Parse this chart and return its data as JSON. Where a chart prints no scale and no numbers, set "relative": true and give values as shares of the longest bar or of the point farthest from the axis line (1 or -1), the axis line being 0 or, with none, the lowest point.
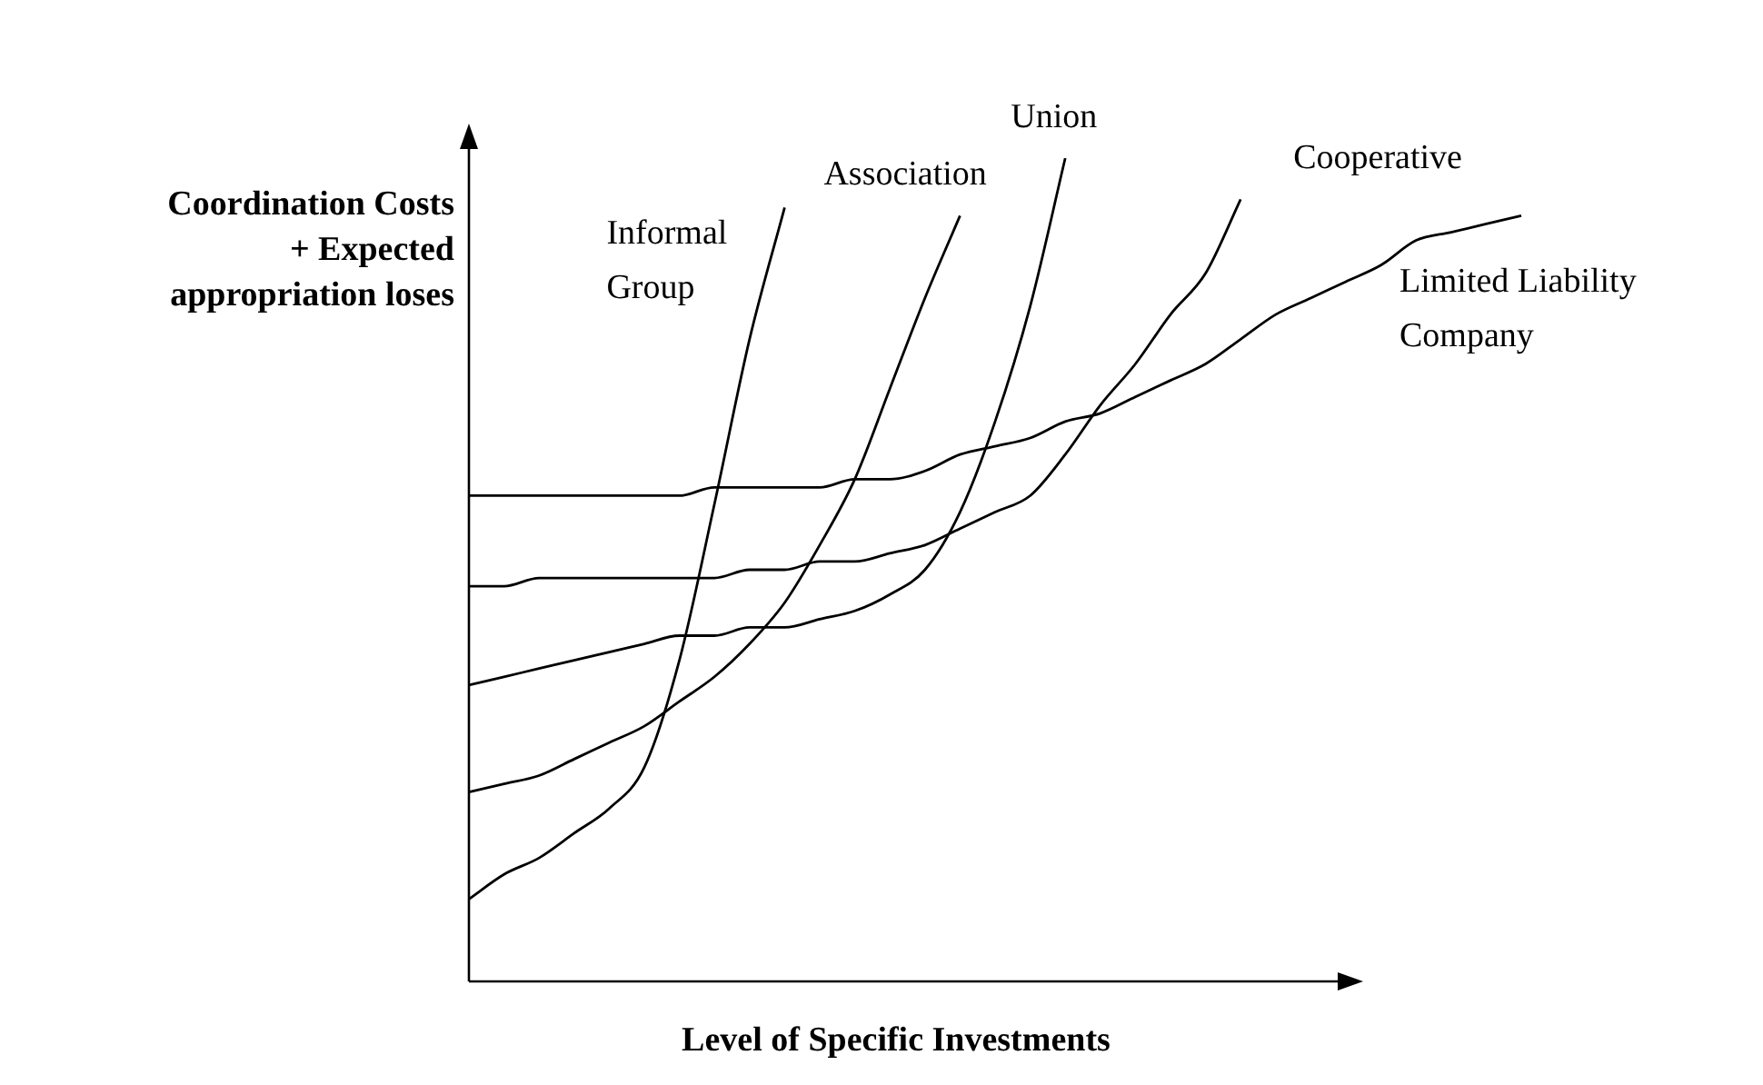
{
  "chart_data": {
    "type": "line",
    "relative": true,
    "xlabel": "Level of Specific Investments",
    "ylabel": "Coordination Costs + Expected appropriation loses",
    "legend": false,
    "marker": "none",
    "line_style": "solid",
    "categories": [
      null,
      null,
      null,
      null,
      null,
      null,
      null,
      null,
      null,
      null,
      null,
      null,
      null,
      null,
      null,
      null,
      null,
      null,
      null,
      null,
      null,
      null,
      null,
      null,
      null,
      null,
      null,
      null,
      null,
      null,
      null
    ],
    "series": [
      {
        "name": "Informal Group",
        "color": "#000000",
        "values": [
          0.1,
          0.13,
          0.15,
          0.18,
          0.21,
          0.26,
          0.39,
          0.58,
          0.78,
          0.94,
          null,
          null,
          null,
          null,
          null,
          null,
          null,
          null,
          null,
          null,
          null,
          null,
          null,
          null,
          null,
          null,
          null,
          null,
          null,
          null,
          null
        ]
      },
      {
        "name": "Association",
        "color": "#000000",
        "values": [
          0.23,
          0.24,
          0.25,
          0.27,
          0.29,
          0.31,
          0.34,
          0.37,
          0.41,
          0.46,
          0.53,
          0.61,
          0.72,
          0.83,
          0.93,
          null,
          null,
          null,
          null,
          null,
          null,
          null,
          null,
          null,
          null,
          null,
          null,
          null,
          null,
          null,
          null
        ]
      },
      {
        "name": "Union",
        "color": "#000000",
        "values": [
          0.36,
          0.37,
          0.38,
          0.39,
          0.4,
          0.41,
          0.42,
          0.42,
          0.43,
          0.43,
          0.44,
          0.45,
          0.47,
          0.5,
          0.57,
          0.68,
          0.82,
          1,
          null,
          null,
          null,
          null,
          null,
          null,
          null,
          null,
          null,
          null,
          null,
          null,
          null
        ]
      },
      {
        "name": "Cooperative",
        "color": "#000000",
        "values": [
          0.48,
          0.48,
          0.49,
          0.49,
          0.49,
          0.49,
          0.49,
          0.49,
          0.5,
          0.5,
          0.51,
          0.51,
          0.52,
          0.53,
          0.55,
          0.57,
          0.59,
          0.64,
          0.7,
          0.75,
          0.81,
          0.86,
          0.95,
          null,
          null,
          null,
          null,
          null,
          null,
          null,
          null
        ]
      },
      {
        "name": "Limited Liability Company",
        "color": "#000000",
        "values": [
          0.59,
          0.59,
          0.59,
          0.59,
          0.59,
          0.59,
          0.59,
          0.6,
          0.6,
          0.6,
          0.6,
          0.61,
          0.61,
          0.62,
          0.64,
          0.65,
          0.66,
          0.68,
          0.69,
          0.71,
          0.73,
          0.75,
          0.78,
          0.81,
          0.83,
          0.85,
          0.87,
          0.9,
          0.91,
          0.92,
          0.93
        ]
      }
    ]
  }
}
